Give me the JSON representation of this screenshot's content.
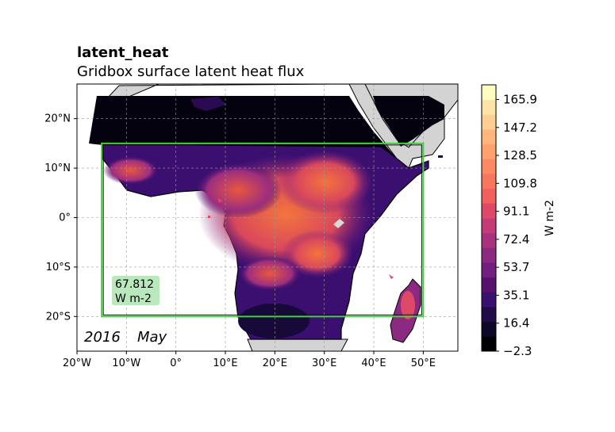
{
  "title": "latent_heat",
  "subtitle": "Gridbox surface latent heat flux",
  "map": {
    "lon_range": [
      -20,
      57
    ],
    "lat_range": [
      -27,
      27
    ],
    "lon_ticks": [
      "20°W",
      "10°W",
      "0°",
      "10°E",
      "20°E",
      "30°E",
      "40°E",
      "50°E"
    ],
    "lat_ticks": [
      "20°N",
      "10°N",
      "0°",
      "10°S",
      "20°S"
    ],
    "gridlines": true,
    "land_color": "#d3d3d3",
    "ocean_color": "#ffffff",
    "region_box": {
      "lon": [
        -15,
        50
      ],
      "lat": [
        -20,
        15
      ],
      "color": "#3fcf3f"
    },
    "period": {
      "year": "2016",
      "month": "May"
    },
    "mean_label": {
      "value": "67.812",
      "unit": "W m-2",
      "bg": "#b9e8bd"
    }
  },
  "colorbar": {
    "label": "W m-2",
    "ticks": [
      "165.9",
      "147.2",
      "128.5",
      "109.8",
      "91.1",
      "72.4",
      "53.7",
      "35.1",
      "16.4",
      "−2.3"
    ],
    "colors": [
      "#000004",
      "#0d0829",
      "#1f0c48",
      "#3b0f70",
      "#57106e",
      "#721f81",
      "#8c2981",
      "#a8327d",
      "#c43c75",
      "#de4968",
      "#f1605d",
      "#f8765c",
      "#fc8961",
      "#fea16e",
      "#feb67c",
      "#fecf92",
      "#fde3a5",
      "#fcfdbf"
    ]
  }
}
